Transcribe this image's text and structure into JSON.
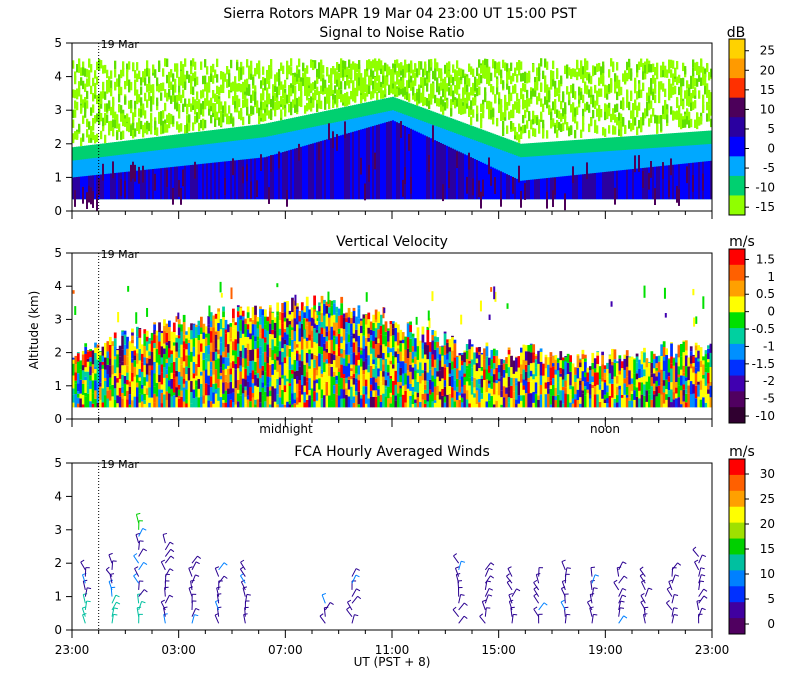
{
  "header": {
    "title": "Sierra Rotors   MAPR 19 Mar 04   23:00 UT   15:00   PST"
  },
  "shared": {
    "date_marker": "19 Mar",
    "xlabel": "UT  (PST + 8)",
    "ylabel": "Altitude (km)",
    "y_ticks": [
      "0",
      "1",
      "2",
      "3",
      "4",
      "5"
    ],
    "time_ticks": [
      "23:00",
      "03:00",
      "07:00",
      "11:00",
      "15:00",
      "19:00",
      "23:00"
    ],
    "day_labels": [
      "midnight",
      "noon"
    ]
  },
  "chart_data": [
    {
      "type": "heatmap",
      "title": "Signal to Noise Ratio",
      "unit": "dB",
      "ylim": [
        0,
        5
      ],
      "colorbar_ticks": [
        "25",
        "20",
        "15",
        "10",
        "5",
        "0",
        "-5",
        "-10",
        "-15"
      ],
      "colors": [
        "#ffd200",
        "#ff9a00",
        "#ff3000",
        "#4c005a",
        "#2a00a0",
        "#0000ff",
        "#00a8ff",
        "#00d070",
        "#90ff00"
      ],
      "profile": [
        {
          "t": 0.0,
          "green_top": 4.3,
          "blue_top": 1.5,
          "dark_top": 1.0
        },
        {
          "t": 0.3,
          "green_top": 4.3,
          "blue_top": 2.2,
          "dark_top": 1.6
        },
        {
          "t": 0.5,
          "green_top": 4.3,
          "blue_top": 3.0,
          "dark_top": 2.7
        },
        {
          "t": 0.7,
          "green_top": 4.3,
          "blue_top": 1.6,
          "dark_top": 0.9
        },
        {
          "t": 1.0,
          "green_top": 4.3,
          "blue_top": 2.0,
          "dark_top": 1.5
        }
      ]
    },
    {
      "type": "heatmap",
      "title": "Vertical Velocity",
      "unit": "m/s",
      "ylim": [
        0,
        5
      ],
      "colorbar_ticks": [
        "1.5",
        "1",
        "0.5",
        "0",
        "-0.5",
        "-1",
        "-1.5",
        "-2",
        "-5",
        "-10"
      ],
      "colors": [
        "#ff0000",
        "#ff6000",
        "#ffa000",
        "#ffff00",
        "#00e000",
        "#00d0a0",
        "#0090ff",
        "#0030ff",
        "#4000b0",
        "#500060",
        "#300030"
      ],
      "profile": [
        {
          "t": 0.0,
          "top": 2.0
        },
        {
          "t": 0.2,
          "top": 3.0
        },
        {
          "t": 0.4,
          "top": 3.6
        },
        {
          "t": 0.6,
          "top": 2.2
        },
        {
          "t": 0.8,
          "top": 1.8
        },
        {
          "t": 1.0,
          "top": 2.2
        }
      ]
    },
    {
      "type": "scatter",
      "title": "FCA Hourly Averaged Winds",
      "unit": "m/s",
      "ylim": [
        0,
        5
      ],
      "colorbar_ticks": [
        "30",
        "25",
        "20",
        "15",
        "10",
        "5",
        "0"
      ],
      "colors": [
        "#ff0000",
        "#ff6000",
        "#ffa000",
        "#ffff00",
        "#a0e000",
        "#00d000",
        "#00c0a0",
        "#0080ff",
        "#0030ff",
        "#4000a0",
        "#500060"
      ],
      "hours": [
        0.5,
        1.5,
        2.5,
        3.5,
        4.5,
        5.5,
        6.5,
        9.5,
        10.5,
        14.5,
        15.5,
        16.5,
        17.5,
        18.5,
        19.5,
        20.5,
        21.5,
        22.5,
        23.5
      ],
      "max_alt_by_hour": [
        1.8,
        2.0,
        3.3,
        2.8,
        2.0,
        1.9,
        1.8,
        0.9,
        1.6,
        2.0,
        1.8,
        1.6,
        1.7,
        1.8,
        1.7,
        1.9,
        1.7,
        1.9,
        2.2
      ]
    }
  ]
}
